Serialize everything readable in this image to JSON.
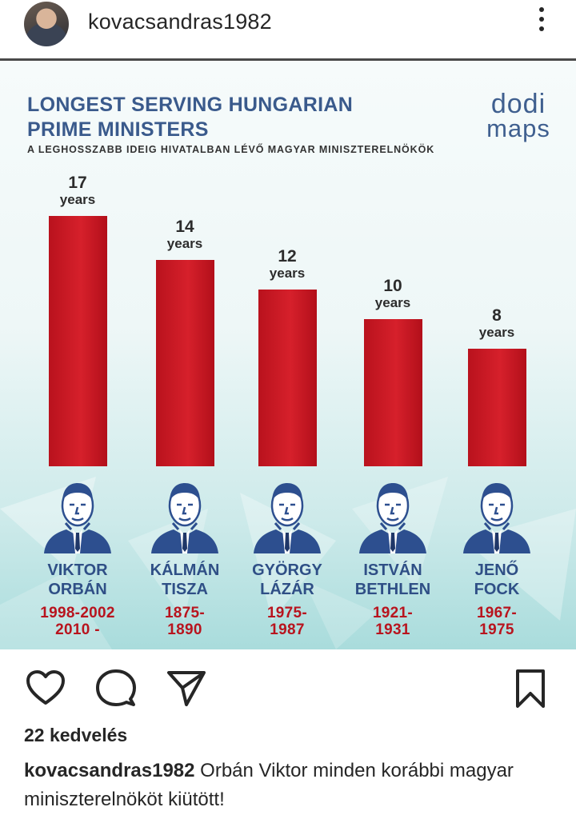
{
  "header": {
    "username": "kovacsandras1982",
    "more_icon": "more-vertical-icon"
  },
  "infographic": {
    "title_line1": "LONGEST SERVING HUNGARIAN",
    "title_line2": "PRIME MINISTERS",
    "subtitle": "A LEGHOSSZABB IDEIG HIVATALBAN LÉVŐ MAGYAR MINISZTERELNÖKÖK",
    "logo_line1": "dodi",
    "logo_line2": "maps",
    "unit": "years",
    "ministers": [
      {
        "name_line1": "VIKTOR",
        "name_line2": "ORBÁN",
        "years_line1": "1998-2002",
        "years_line2": "2010 -",
        "value": "17"
      },
      {
        "name_line1": "KÁLMÁN",
        "name_line2": "TISZA",
        "years_line1": "1875-",
        "years_line2": "1890",
        "value": "14"
      },
      {
        "name_line1": "GYÖRGY",
        "name_line2": "LÁZÁR",
        "years_line1": "1975-",
        "years_line2": "1987",
        "value": "12"
      },
      {
        "name_line1": "ISTVÁN",
        "name_line2": "BETHLEN",
        "years_line1": "1921-",
        "years_line2": "1931",
        "value": "10"
      },
      {
        "name_line1": "JENŐ",
        "name_line2": "FOCK",
        "years_line1": "1967-",
        "years_line2": "1975",
        "value": "8"
      }
    ],
    "colors": {
      "bar": "#c8161f",
      "title": "#3a5a8c",
      "names": "#2f4f86",
      "years": "#b8141e"
    }
  },
  "chart_data": {
    "type": "bar",
    "categories": [
      "VIKTOR ORBÁN",
      "KÁLMÁN TISZA",
      "GYÖRGY LÁZÁR",
      "ISTVÁN BETHLEN",
      "JENŐ FOCK"
    ],
    "values": [
      17,
      14,
      12,
      10,
      8
    ],
    "title": "LONGEST SERVING HUNGARIAN PRIME MINISTERS",
    "subtitle": "A LEGHOSSZABB IDEIG HIVATALBAN LÉVŐ MAGYAR MINISZTERELNÖKÖK",
    "ylim": [
      0,
      17
    ],
    "grid": false
  },
  "actions": {
    "like_icon": "heart-icon",
    "comment_icon": "comment-icon",
    "share_icon": "share-icon",
    "save_icon": "bookmark-icon"
  },
  "post": {
    "likes": "22 kedvelés",
    "caption_user": "kovacsandras1982",
    "caption_text": " Orbán Viktor minden korábbi magyar miniszterelnököt kiütött!"
  }
}
